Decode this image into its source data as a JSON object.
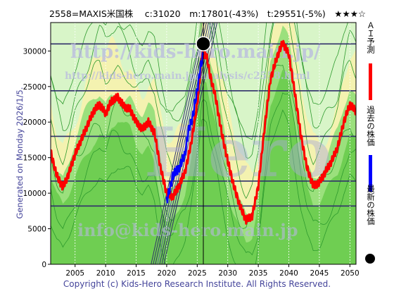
{
  "title": "2558=MAXIS米国株　 c:31020　m:17801(-43%)　t:29551(-5%)　★★★☆",
  "side_text": "Generated on Monday 2026/1/5.",
  "footer": "Copyright (c) Kids-Hero Research Institute. All Rights Reserved.",
  "watermarks": [
    "http://kids-hero.main.jp/",
    "http://kids-hero.main.jp/analysis/c2558.html",
    "Hero",
    "info@kids-hero.main.jp"
  ],
  "legend": [
    {
      "label": "ＡＩ予測",
      "color": "#ff0000"
    },
    {
      "label": "過去の株価",
      "color": "#0000ff"
    },
    {
      "label": "最新の株価",
      "color": "#000000"
    }
  ],
  "chart_data": {
    "type": "line",
    "x_ticks": [
      "2005",
      "2010",
      "2015",
      "2020",
      "2025",
      "2030",
      "2035",
      "2040",
      "2045",
      "2050"
    ],
    "y_ticks": [
      "0",
      "5000",
      "10000",
      "15000",
      "20000",
      "25000",
      "30000"
    ],
    "xlim": [
      2001,
      2051
    ],
    "ylim": [
      0,
      34000
    ],
    "horizontal_levels": [
      31000,
      24400,
      18000,
      11700,
      8200
    ],
    "current_marker": {
      "x": 2026.0,
      "y": 31020
    },
    "series": [
      {
        "role": "ai-forecast",
        "color": "#ff0000",
        "points": [
          [
            2001,
            15800
          ],
          [
            2002,
            12500
          ],
          [
            2003,
            10800
          ],
          [
            2004,
            12800
          ],
          [
            2005,
            15500
          ],
          [
            2006,
            17500
          ],
          [
            2007,
            19500
          ],
          [
            2008,
            21500
          ],
          [
            2009,
            22500
          ],
          [
            2010,
            21200
          ],
          [
            2011,
            23000
          ],
          [
            2012,
            23500
          ],
          [
            2013,
            22200
          ],
          [
            2014,
            21800
          ],
          [
            2015,
            20000
          ],
          [
            2016,
            19000
          ],
          [
            2017,
            20000
          ],
          [
            2018,
            18500
          ],
          [
            2019,
            13500
          ],
          [
            2020,
            10000
          ],
          [
            2021,
            9500
          ],
          [
            2022,
            11000
          ],
          [
            2023,
            13000
          ],
          [
            2024,
            17000
          ],
          [
            2025,
            22500
          ],
          [
            2025.8,
            29500
          ],
          [
            2026.5,
            29500
          ],
          [
            2027,
            27000
          ],
          [
            2028,
            23500
          ],
          [
            2029,
            18500
          ],
          [
            2030,
            14500
          ],
          [
            2031,
            11000
          ],
          [
            2032,
            8200
          ],
          [
            2033,
            6200
          ],
          [
            2034,
            6800
          ],
          [
            2035,
            11000
          ],
          [
            2036,
            19000
          ],
          [
            2037,
            26000
          ],
          [
            2038,
            29000
          ],
          [
            2039,
            31200
          ],
          [
            2040,
            29500
          ],
          [
            2041,
            24000
          ],
          [
            2042,
            18000
          ],
          [
            2043,
            13500
          ],
          [
            2044,
            11000
          ],
          [
            2045,
            11500
          ],
          [
            2046,
            13000
          ],
          [
            2047,
            14500
          ],
          [
            2048,
            16500
          ],
          [
            2049,
            20000
          ],
          [
            2050,
            22500
          ],
          [
            2051,
            21500
          ]
        ]
      },
      {
        "role": "past-price",
        "color": "#0000ff",
        "points": [
          [
            2020,
            9000
          ],
          [
            2020.5,
            10500
          ],
          [
            2021,
            12500
          ],
          [
            2022,
            13500
          ],
          [
            2023,
            15500
          ],
          [
            2023.5,
            18500
          ],
          [
            2024.3,
            21000
          ],
          [
            2025,
            24500
          ],
          [
            2025.5,
            27500
          ],
          [
            2026,
            29500
          ]
        ]
      }
    ]
  }
}
